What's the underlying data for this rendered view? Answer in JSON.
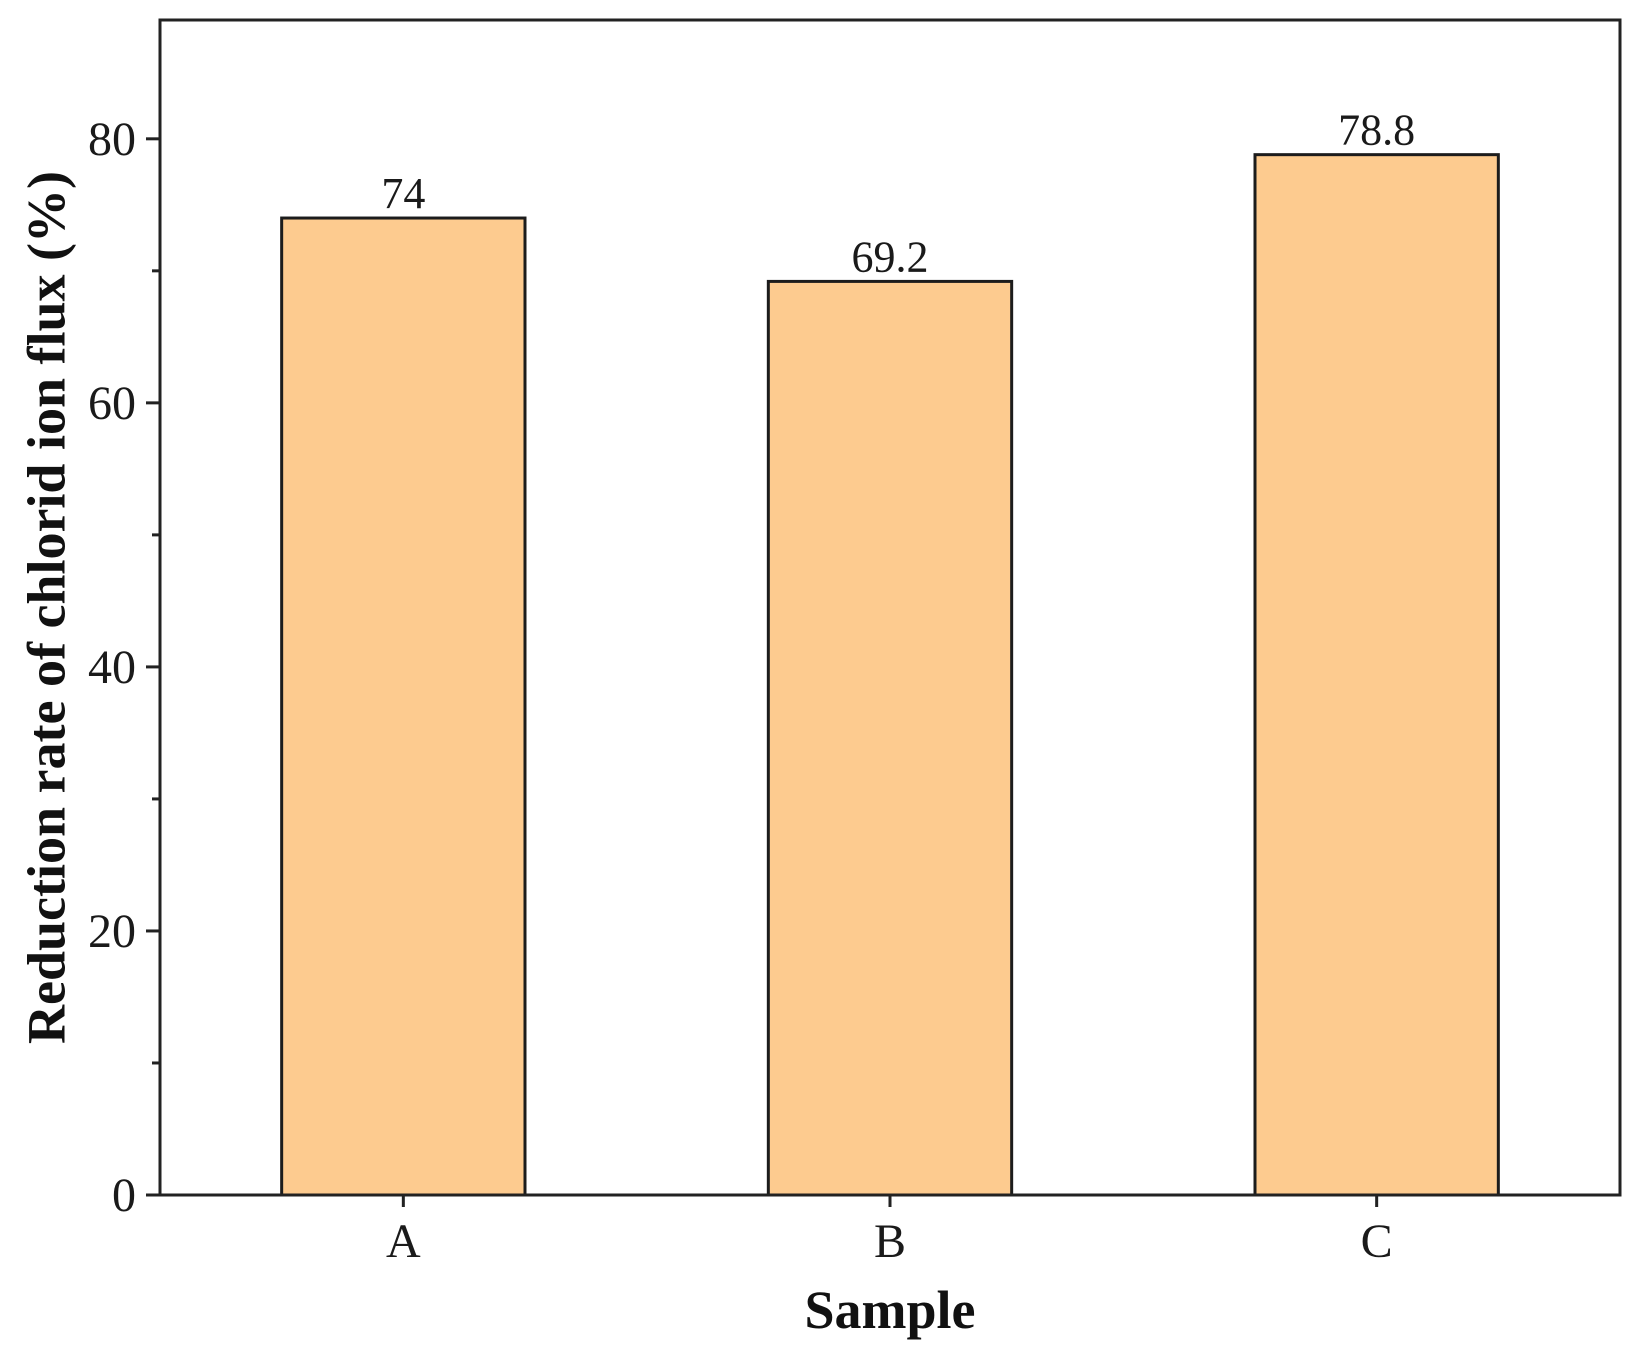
{
  "chart_data": {
    "type": "bar",
    "categories": [
      "A",
      "B",
      "C"
    ],
    "values": [
      74,
      69.2,
      78.8
    ],
    "data_labels": [
      "74",
      "69.2",
      "78.8"
    ],
    "title": "",
    "xlabel": "Sample",
    "ylabel": "Reduction rate of chlorid ion flux (%)",
    "ylim": [
      0,
      89
    ],
    "y_major_ticks": [
      0,
      20,
      40,
      60,
      80
    ],
    "y_minor_ticks": [
      10,
      30,
      50,
      70
    ],
    "grid": false,
    "legend": "none",
    "colors": {
      "bar_fill": "#FDCB8F",
      "bar_edge": "#1c1c1c",
      "axis": "#222222"
    }
  }
}
